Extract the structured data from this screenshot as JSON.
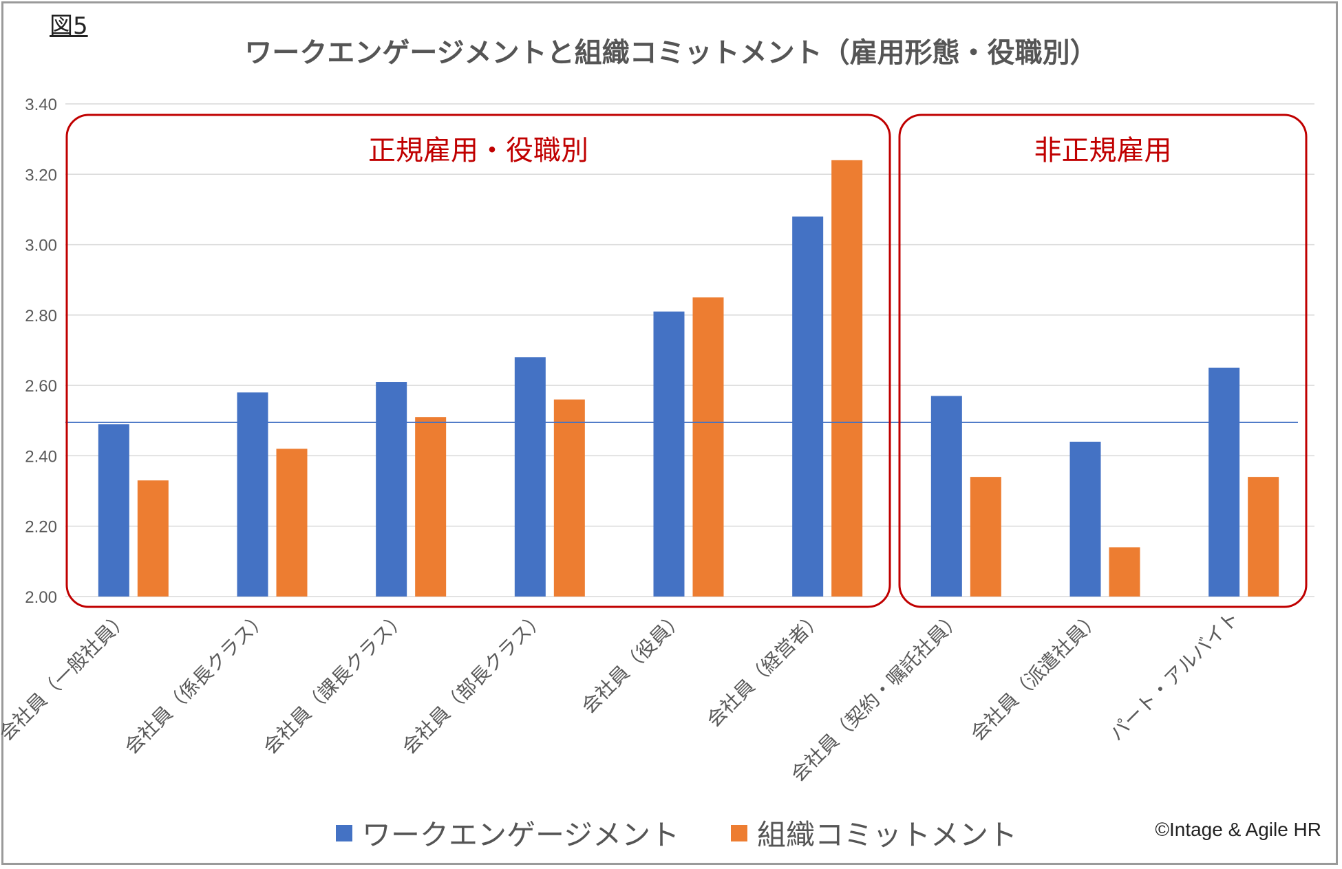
{
  "figure_label": "図5",
  "copyright": "©Intage & Agile HR",
  "colors": {
    "series_blue": "#4472C4",
    "series_orange": "#ED7D31",
    "group_box": "#C00000",
    "reference_line": "#4472C4",
    "grid": "#d9d9d9",
    "axis_text": "#595959"
  },
  "chart_data": {
    "type": "bar",
    "title": "ワークエンゲージメントと組織コミットメント（雇用形態・役職別）",
    "categories": [
      "会社員（一般社員）",
      "会社員（係長クラス）",
      "会社員（課長クラス）",
      "会社員（部長クラス）",
      "会社員（役員）",
      "会社員（経営者）",
      "会社員（契約・嘱託社員）",
      "会社員（派遣社員）",
      "パート・アルバイト"
    ],
    "series": [
      {
        "name": "ワークエンゲージメント",
        "values": [
          2.49,
          2.58,
          2.61,
          2.68,
          2.81,
          3.08,
          2.57,
          2.44,
          2.65
        ]
      },
      {
        "name": "組織コミットメント",
        "values": [
          2.33,
          2.42,
          2.51,
          2.56,
          2.85,
          3.24,
          2.34,
          2.14,
          2.34
        ]
      }
    ],
    "ylim": [
      2.0,
      3.4
    ],
    "yticks": [
      "2.00",
      "2.20",
      "2.40",
      "2.60",
      "2.80",
      "3.00",
      "3.20",
      "3.40"
    ],
    "reference_line_value": 2.495,
    "grid": true,
    "legend_position": "bottom",
    "groups": [
      {
        "label": "正規雇用・役職別",
        "start": 0,
        "end": 5
      },
      {
        "label": "非正規雇用",
        "start": 6,
        "end": 8
      }
    ]
  }
}
